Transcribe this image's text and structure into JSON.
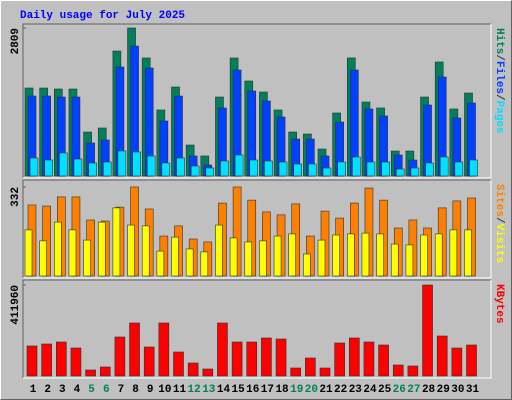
{
  "chart_data": [
    {
      "type": "bar",
      "title": "Daily usage for July 2025",
      "categories": [
        "1",
        "2",
        "3",
        "4",
        "5",
        "6",
        "7",
        "8",
        "9",
        "10",
        "11",
        "12",
        "13",
        "14",
        "15",
        "16",
        "17",
        "18",
        "19",
        "20",
        "21",
        "22",
        "23",
        "24",
        "25",
        "26",
        "27",
        "28",
        "29",
        "30",
        "31"
      ],
      "category_colors": [
        "#000000",
        "#000000",
        "#000000",
        "#000000",
        "#00805c",
        "#00805c",
        "#000000",
        "#000000",
        "#000000",
        "#000000",
        "#000000",
        "#00805c",
        "#00805c",
        "#000000",
        "#000000",
        "#000000",
        "#000000",
        "#000000",
        "#00805c",
        "#00805c",
        "#000000",
        "#000000",
        "#000000",
        "#000000",
        "#000000",
        "#00805c",
        "#00805c",
        "#000000",
        "#000000",
        "#000000",
        "#000000"
      ],
      "legend_separator": "/",
      "ylim": [
        0,
        2809
      ],
      "yticks": [
        2809
      ],
      "series": [
        {
          "name": "Hits",
          "color": "#00805c",
          "values": [
            1670,
            1670,
            1651,
            1651,
            835,
            911,
            2372,
            2809,
            2240,
            1253,
            1689,
            588,
            380,
            1499,
            2240,
            1803,
            1594,
            1253,
            835,
            797,
            512,
            1196,
            2240,
            1404,
            1291,
            474,
            474,
            1499,
            2164,
            1272,
            1575
          ]
        },
        {
          "name": "Files",
          "color": "#0040ff",
          "values": [
            1518,
            1518,
            1499,
            1499,
            626,
            683,
            2069,
            2467,
            2050,
            1044,
            1518,
            380,
            209,
            1291,
            2012,
            1613,
            1424,
            1120,
            702,
            702,
            380,
            1025,
            2012,
            1272,
            1139,
            399,
            304,
            1348,
            1879,
            1101,
            1386
          ]
        },
        {
          "name": "Pages",
          "color": "#00e0ff",
          "values": [
            342,
            304,
            437,
            323,
            247,
            266,
            475,
            456,
            380,
            247,
            342,
            190,
            152,
            285,
            399,
            304,
            285,
            266,
            228,
            228,
            152,
            266,
            361,
            266,
            266,
            133,
            152,
            247,
            361,
            266,
            304
          ]
        }
      ]
    },
    {
      "type": "bar",
      "legend_separator": "/",
      "ylim": [
        0,
        332
      ],
      "yticks": [
        332
      ],
      "series": [
        {
          "name": "Sites",
          "color": "#ff8000",
          "values": [
            265,
            261,
            295,
            295,
            209,
            205,
            257,
            332,
            250,
            149,
            187,
            138,
            127,
            272,
            332,
            283,
            239,
            228,
            269,
            149,
            242,
            216,
            272,
            328,
            283,
            179,
            209,
            179,
            254,
            280,
            291
          ]
        },
        {
          "name": "Visits",
          "color": "#ffff00",
          "values": [
            172,
            131,
            201,
            172,
            134,
            201,
            254,
            190,
            187,
            93,
            145,
            101,
            90,
            190,
            142,
            127,
            131,
            149,
            157,
            82,
            134,
            153,
            157,
            160,
            157,
            119,
            116,
            153,
            157,
            172,
            172
          ]
        }
      ]
    },
    {
      "type": "bar",
      "ylim": [
        0,
        411960
      ],
      "yticks": [
        411960
      ],
      "series": [
        {
          "name": "KBytes",
          "color": "#ff0000",
          "values": [
            135810,
            144864,
            153918,
            126756,
            27162,
            40743,
            176553,
            239931,
            131283,
            239931,
            108648,
            58851,
            31689,
            239931,
            153918,
            153918,
            172026,
            167499,
            36216,
            81486,
            36216,
            149391,
            172026,
            153918,
            140337,
            49797,
            45270,
            411960,
            181080,
            126756,
            140337
          ]
        }
      ]
    }
  ]
}
